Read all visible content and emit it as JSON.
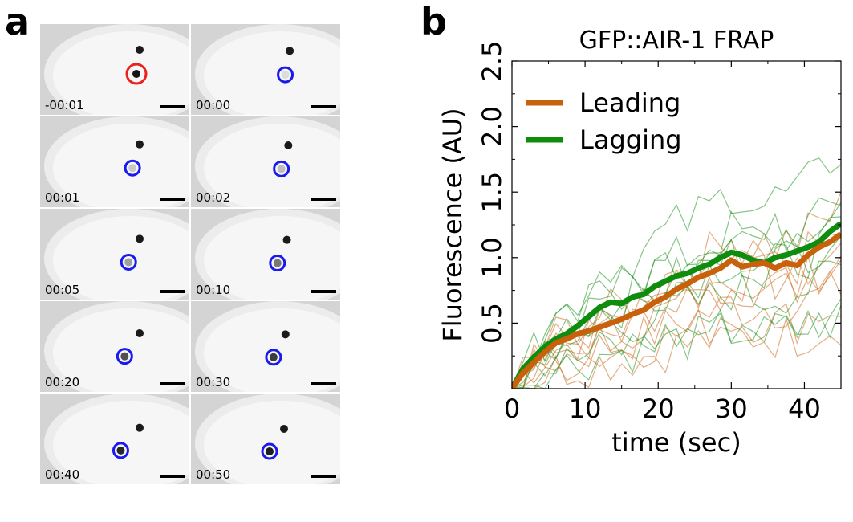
{
  "panels": {
    "a": "a",
    "b": "b"
  },
  "micrographs": {
    "frames": [
      {
        "time": "-00:01",
        "circle": "red",
        "spot_intensity": 1.0
      },
      {
        "time": "00:00",
        "circle": "blue",
        "spot_intensity": 0.0
      },
      {
        "time": "00:01",
        "circle": "blue",
        "spot_intensity": 0.1
      },
      {
        "time": "00:02",
        "circle": "blue",
        "spot_intensity": 0.15
      },
      {
        "time": "00:05",
        "circle": "blue",
        "spot_intensity": 0.3
      },
      {
        "time": "00:10",
        "circle": "blue",
        "spot_intensity": 0.5
      },
      {
        "time": "00:20",
        "circle": "blue",
        "spot_intensity": 0.7
      },
      {
        "time": "00:30",
        "circle": "blue",
        "spot_intensity": 0.8
      },
      {
        "time": "00:40",
        "circle": "blue",
        "spot_intensity": 0.9
      },
      {
        "time": "00:50",
        "circle": "blue",
        "spot_intensity": 0.95
      }
    ],
    "colors": {
      "red": "#e8221e",
      "blue": "#1a1aee"
    }
  },
  "chart_data": {
    "type": "line",
    "title": "GFP::AIR-1 FRAP",
    "xlabel": "time (sec)",
    "ylabel": "Fluorescence (AU)",
    "xlim": [
      0,
      45
    ],
    "ylim": [
      0,
      2.5
    ],
    "xticks": [
      0,
      10,
      20,
      30,
      40
    ],
    "yticks": [
      0.5,
      1.0,
      1.5,
      2.0,
      2.5
    ],
    "xtick_labels": [
      "0",
      "10",
      "20",
      "30",
      "40"
    ],
    "ytick_labels": [
      "0.5",
      "1.0",
      "1.5",
      "2.0",
      "2.5"
    ],
    "legend_position": "top-left",
    "grid": false,
    "series": [
      {
        "name": "Leading",
        "color": "#c8600c",
        "x": [
          0,
          1.5,
          3,
          4.5,
          6,
          7.5,
          9,
          10.5,
          12,
          13.5,
          15,
          16.5,
          18,
          19.5,
          21,
          22.5,
          24,
          25.5,
          27,
          28.5,
          30,
          31.5,
          33,
          34.5,
          36,
          37.5,
          39,
          40.5,
          42,
          43.5,
          45
        ],
        "y": [
          0,
          0.12,
          0.2,
          0.28,
          0.35,
          0.38,
          0.42,
          0.44,
          0.47,
          0.5,
          0.53,
          0.57,
          0.6,
          0.66,
          0.7,
          0.76,
          0.8,
          0.85,
          0.88,
          0.92,
          0.98,
          0.93,
          0.95,
          0.96,
          0.92,
          0.96,
          0.94,
          1.02,
          1.08,
          1.12,
          1.18
        ]
      },
      {
        "name": "Lagging",
        "color": "#0d8c0d",
        "x": [
          0,
          1.5,
          3,
          4.5,
          6,
          7.5,
          9,
          10.5,
          12,
          13.5,
          15,
          16.5,
          18,
          19.5,
          21,
          22.5,
          24,
          25.5,
          27,
          28.5,
          30,
          31.5,
          33,
          34.5,
          36,
          37.5,
          39,
          40.5,
          42,
          43.5,
          45
        ],
        "y": [
          0,
          0.15,
          0.24,
          0.32,
          0.38,
          0.42,
          0.48,
          0.55,
          0.62,
          0.66,
          0.65,
          0.7,
          0.72,
          0.78,
          0.82,
          0.86,
          0.88,
          0.92,
          0.95,
          1.0,
          1.04,
          1.02,
          0.98,
          0.96,
          1.0,
          1.02,
          1.05,
          1.08,
          1.12,
          1.2,
          1.26
        ]
      }
    ],
    "individual_traces_opacity": 0.5
  }
}
